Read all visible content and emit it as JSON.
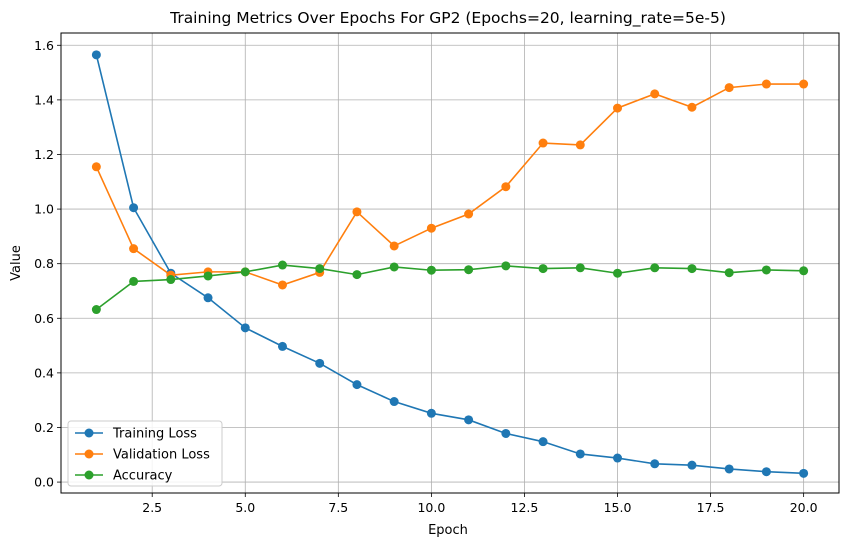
{
  "chart_data": {
    "type": "line",
    "title": "Training Metrics Over Epochs For GP2 (Epochs=20, learning_rate=5e-5)",
    "xlabel": "Epoch",
    "ylabel": "Value",
    "xlim": [
      0.05,
      20.95
    ],
    "ylim": [
      -0.04,
      1.645
    ],
    "xticks": [
      2.5,
      5.0,
      7.5,
      10.0,
      12.5,
      15.0,
      17.5,
      20.0
    ],
    "xtick_labels": [
      "2.5",
      "5.0",
      "7.5",
      "10.0",
      "12.5",
      "15.0",
      "17.5",
      "20.0"
    ],
    "yticks": [
      0.0,
      0.2,
      0.4,
      0.6,
      0.8,
      1.0,
      1.2,
      1.4,
      1.6
    ],
    "ytick_labels": [
      "0.0",
      "0.2",
      "0.4",
      "0.6",
      "0.8",
      "1.0",
      "1.2",
      "1.4",
      "1.6"
    ],
    "grid": true,
    "legend_position": "lower-left",
    "x": [
      1,
      2,
      3,
      4,
      5,
      6,
      7,
      8,
      9,
      10,
      11,
      12,
      13,
      14,
      15,
      16,
      17,
      18,
      19,
      20
    ],
    "series": [
      {
        "name": "Training Loss",
        "color": "#1f77b4",
        "values": [
          1.565,
          1.005,
          0.765,
          0.675,
          0.565,
          0.497,
          0.435,
          0.357,
          0.295,
          0.252,
          0.228,
          0.178,
          0.148,
          0.103,
          0.088,
          0.067,
          0.062,
          0.048,
          0.038,
          0.032
        ]
      },
      {
        "name": "Validation Loss",
        "color": "#ff7f0e",
        "values": [
          1.155,
          0.855,
          0.758,
          0.77,
          0.77,
          0.722,
          0.768,
          0.99,
          0.865,
          0.93,
          0.982,
          1.082,
          1.242,
          1.235,
          1.37,
          1.422,
          1.373,
          1.445,
          1.458,
          1.458
        ]
      },
      {
        "name": "Accuracy",
        "color": "#2ca02c",
        "values": [
          0.632,
          0.735,
          0.742,
          0.755,
          0.77,
          0.795,
          0.782,
          0.76,
          0.788,
          0.776,
          0.778,
          0.792,
          0.782,
          0.785,
          0.765,
          0.785,
          0.782,
          0.767,
          0.777,
          0.774
        ]
      }
    ]
  }
}
